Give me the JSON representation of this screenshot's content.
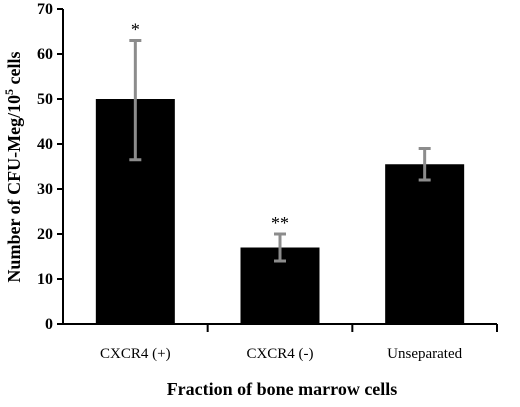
{
  "chart_data": {
    "type": "bar",
    "title": "",
    "xlabel": "Fraction of bone marrow cells",
    "ylabel_prefix": "Number of CFU-Meg/10",
    "ylabel_sup": "5",
    "ylabel_suffix": " cells",
    "ylim": [
      0,
      70
    ],
    "yticks": [
      0,
      10,
      20,
      30,
      40,
      50,
      60,
      70
    ],
    "ytick_labels": [
      "0",
      "10",
      "20",
      "30",
      "40",
      "50",
      "60",
      "70"
    ],
    "categories": [
      "CXCR4 (+)",
      "CXCR4 (-)",
      "Unseparated"
    ],
    "values": [
      50,
      17,
      35.5
    ],
    "errors": [
      [
        36.5,
        63
      ],
      [
        14,
        20
      ],
      [
        32,
        39
      ]
    ],
    "annotations": [
      "*",
      "**",
      ""
    ],
    "grid": false,
    "legend": "none",
    "colors": {
      "bar": "#000000",
      "error_bar": "#8c8c8c",
      "axis": "#000000",
      "background": "#ffffff"
    }
  }
}
